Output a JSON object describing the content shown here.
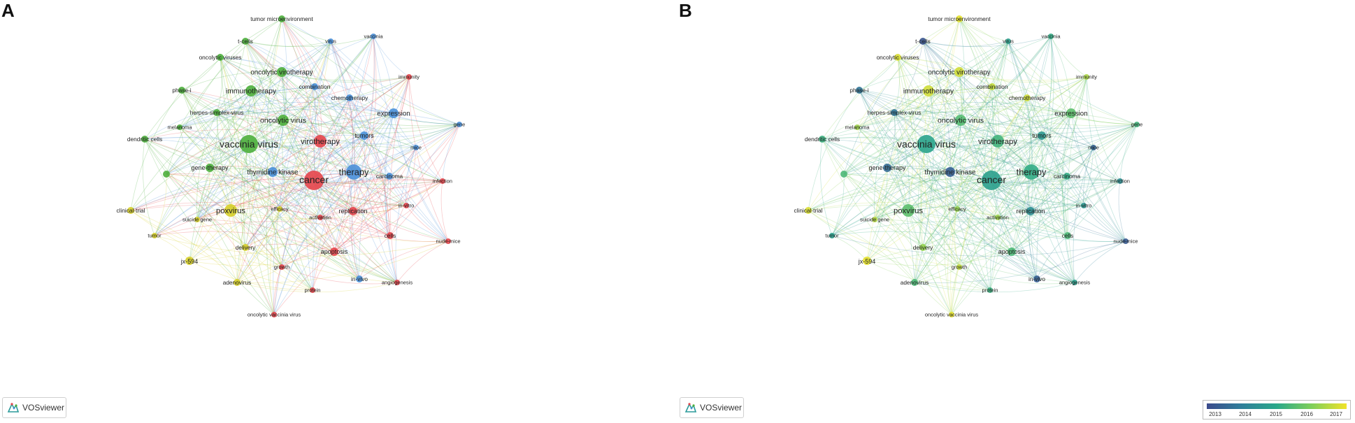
{
  "panels": [
    {
      "letter": "A",
      "mode": "cluster"
    },
    {
      "letter": "B",
      "mode": "overlay"
    }
  ],
  "brand": "VOSviewer",
  "cluster_colors": {
    "red": "#e5454b",
    "green": "#4caf3c",
    "blue": "#4a90d9",
    "yellow": "#d6cf2a"
  },
  "scale": {
    "labels": [
      "2013",
      "2014",
      "2015",
      "2016",
      "2017"
    ],
    "colors": [
      "#3b4a8c",
      "#2f7f9a",
      "#2aa88a",
      "#7fcf5a",
      "#f1e32a"
    ]
  },
  "nodes": [
    {
      "label": "cancer",
      "cluster": "red",
      "size": 14,
      "year": 2014.8
    },
    {
      "label": "vaccinia virus",
      "cluster": "green",
      "size": 13,
      "year": 2014.9
    },
    {
      "label": "therapy",
      "cluster": "blue",
      "size": 11,
      "year": 2015.1
    },
    {
      "label": "virotherapy",
      "cluster": "red",
      "size": 9,
      "year": 2015.3
    },
    {
      "label": "poxvirus",
      "cluster": "yellow",
      "size": 9,
      "year": 2015.6
    },
    {
      "label": "oncolytic virus",
      "cluster": "green",
      "size": 8,
      "year": 2015.5
    },
    {
      "label": "immunotherapy",
      "cluster": "green",
      "size": 8,
      "year": 2016.7
    },
    {
      "label": "thymidine kinase",
      "cluster": "blue",
      "size": 7,
      "year": 2013.4
    },
    {
      "label": "expression",
      "cluster": "blue",
      "size": 7,
      "year": 2015.6
    },
    {
      "label": "oncolytic virotherapy",
      "cluster": "green",
      "size": 7,
      "year": 2016.7
    },
    {
      "label": "tumors",
      "cluster": "blue",
      "size": 6,
      "year": 2014.6
    },
    {
      "label": "replication",
      "cluster": "red",
      "size": 6,
      "year": 2014.4
    },
    {
      "label": "jx-594",
      "cluster": "yellow",
      "size": 6,
      "year": 2016.9
    },
    {
      "label": "apoptosis",
      "cluster": "red",
      "size": 6,
      "year": 2015.4
    },
    {
      "label": "gene-therapy",
      "cluster": "green",
      "size": 6,
      "year": 2013.6
    },
    {
      "label": "adenovirus",
      "cluster": "yellow",
      "size": 5,
      "year": 2015.4
    },
    {
      "label": "cells",
      "cluster": "red",
      "size": 5,
      "year": 2015.4
    },
    {
      "label": "phase-i",
      "cluster": "green",
      "size": 5,
      "year": 2013.8
    },
    {
      "label": "carcinoma",
      "cluster": "blue",
      "size": 5,
      "year": 2015.1
    },
    {
      "label": "herpes-simplex-virus",
      "cluster": "green",
      "size": 5,
      "year": 2013.8
    },
    {
      "label": "combination",
      "cluster": "blue",
      "size": 5,
      "year": 2016.6
    },
    {
      "label": "chemotherapy",
      "cluster": "blue",
      "size": 5,
      "year": 2016.7
    },
    {
      "label": "tumor microenvironment",
      "cluster": "green",
      "size": 5,
      "year": 2016.9
    },
    {
      "label": "t-cells",
      "cluster": "green",
      "size": 5,
      "year": 2013.2
    },
    {
      "label": "virus",
      "cluster": "blue",
      "size": 4,
      "year": 2014.8
    },
    {
      "label": "vaccinia",
      "cluster": "blue",
      "size": 4,
      "year": 2015.1
    },
    {
      "label": "oncolytic viruses",
      "cluster": "green",
      "size": 5,
      "year": 2016.8
    },
    {
      "label": "immunity",
      "cluster": "red",
      "size": 4,
      "year": 2016.4
    },
    {
      "label": "gene",
      "cluster": "blue",
      "size": 4,
      "year": 2015.3
    },
    {
      "label": "mice",
      "cluster": "blue",
      "size": 4,
      "year": 2013.5
    },
    {
      "label": "melanoma",
      "cluster": "green",
      "size": 4,
      "year": 2016.3
    },
    {
      "label": "dendritic cells",
      "cluster": "green",
      "size": 5,
      "year": 2015.2
    },
    {
      "label": "infection",
      "cluster": "red",
      "size": 4,
      "year": 2014.4
    },
    {
      "label": "in-vitro",
      "cluster": "red",
      "size": 4,
      "year": 2014.6
    },
    {
      "label": "efficacy",
      "cluster": "yellow",
      "size": 4,
      "year": 2016.2
    },
    {
      "label": "activation",
      "cluster": "red",
      "size": 4,
      "year": 2016.3
    },
    {
      "label": "clinical-trial",
      "cluster": "yellow",
      "size": 5,
      "year": 2016.8
    },
    {
      "label": "suicide gene",
      "cluster": "yellow",
      "size": 4,
      "year": 2016.5
    },
    {
      "label": "tumor",
      "cluster": "yellow",
      "size": 4,
      "year": 2014.8
    },
    {
      "label": "delivery",
      "cluster": "yellow",
      "size": 5,
      "year": 2016.2
    },
    {
      "label": "growth",
      "cluster": "red",
      "size": 4,
      "year": 2016.6
    },
    {
      "label": "nude-mice",
      "cluster": "red",
      "size": 4,
      "year": 2013.3
    },
    {
      "label": "in-vivo",
      "cluster": "blue",
      "size": 5,
      "year": 2013.4
    },
    {
      "label": "angiogenesis",
      "cluster": "red",
      "size": 4,
      "year": 2014.8
    },
    {
      "label": "protein",
      "cluster": "red",
      "size": 4,
      "year": 2015.2
    },
    {
      "label": "oncolytic vaccinia virus",
      "cluster": "red",
      "size": 4,
      "year": 2016.9
    },
    {
      "label": "",
      "cluster": "green",
      "size": 5,
      "year": 2015.4
    }
  ]
}
